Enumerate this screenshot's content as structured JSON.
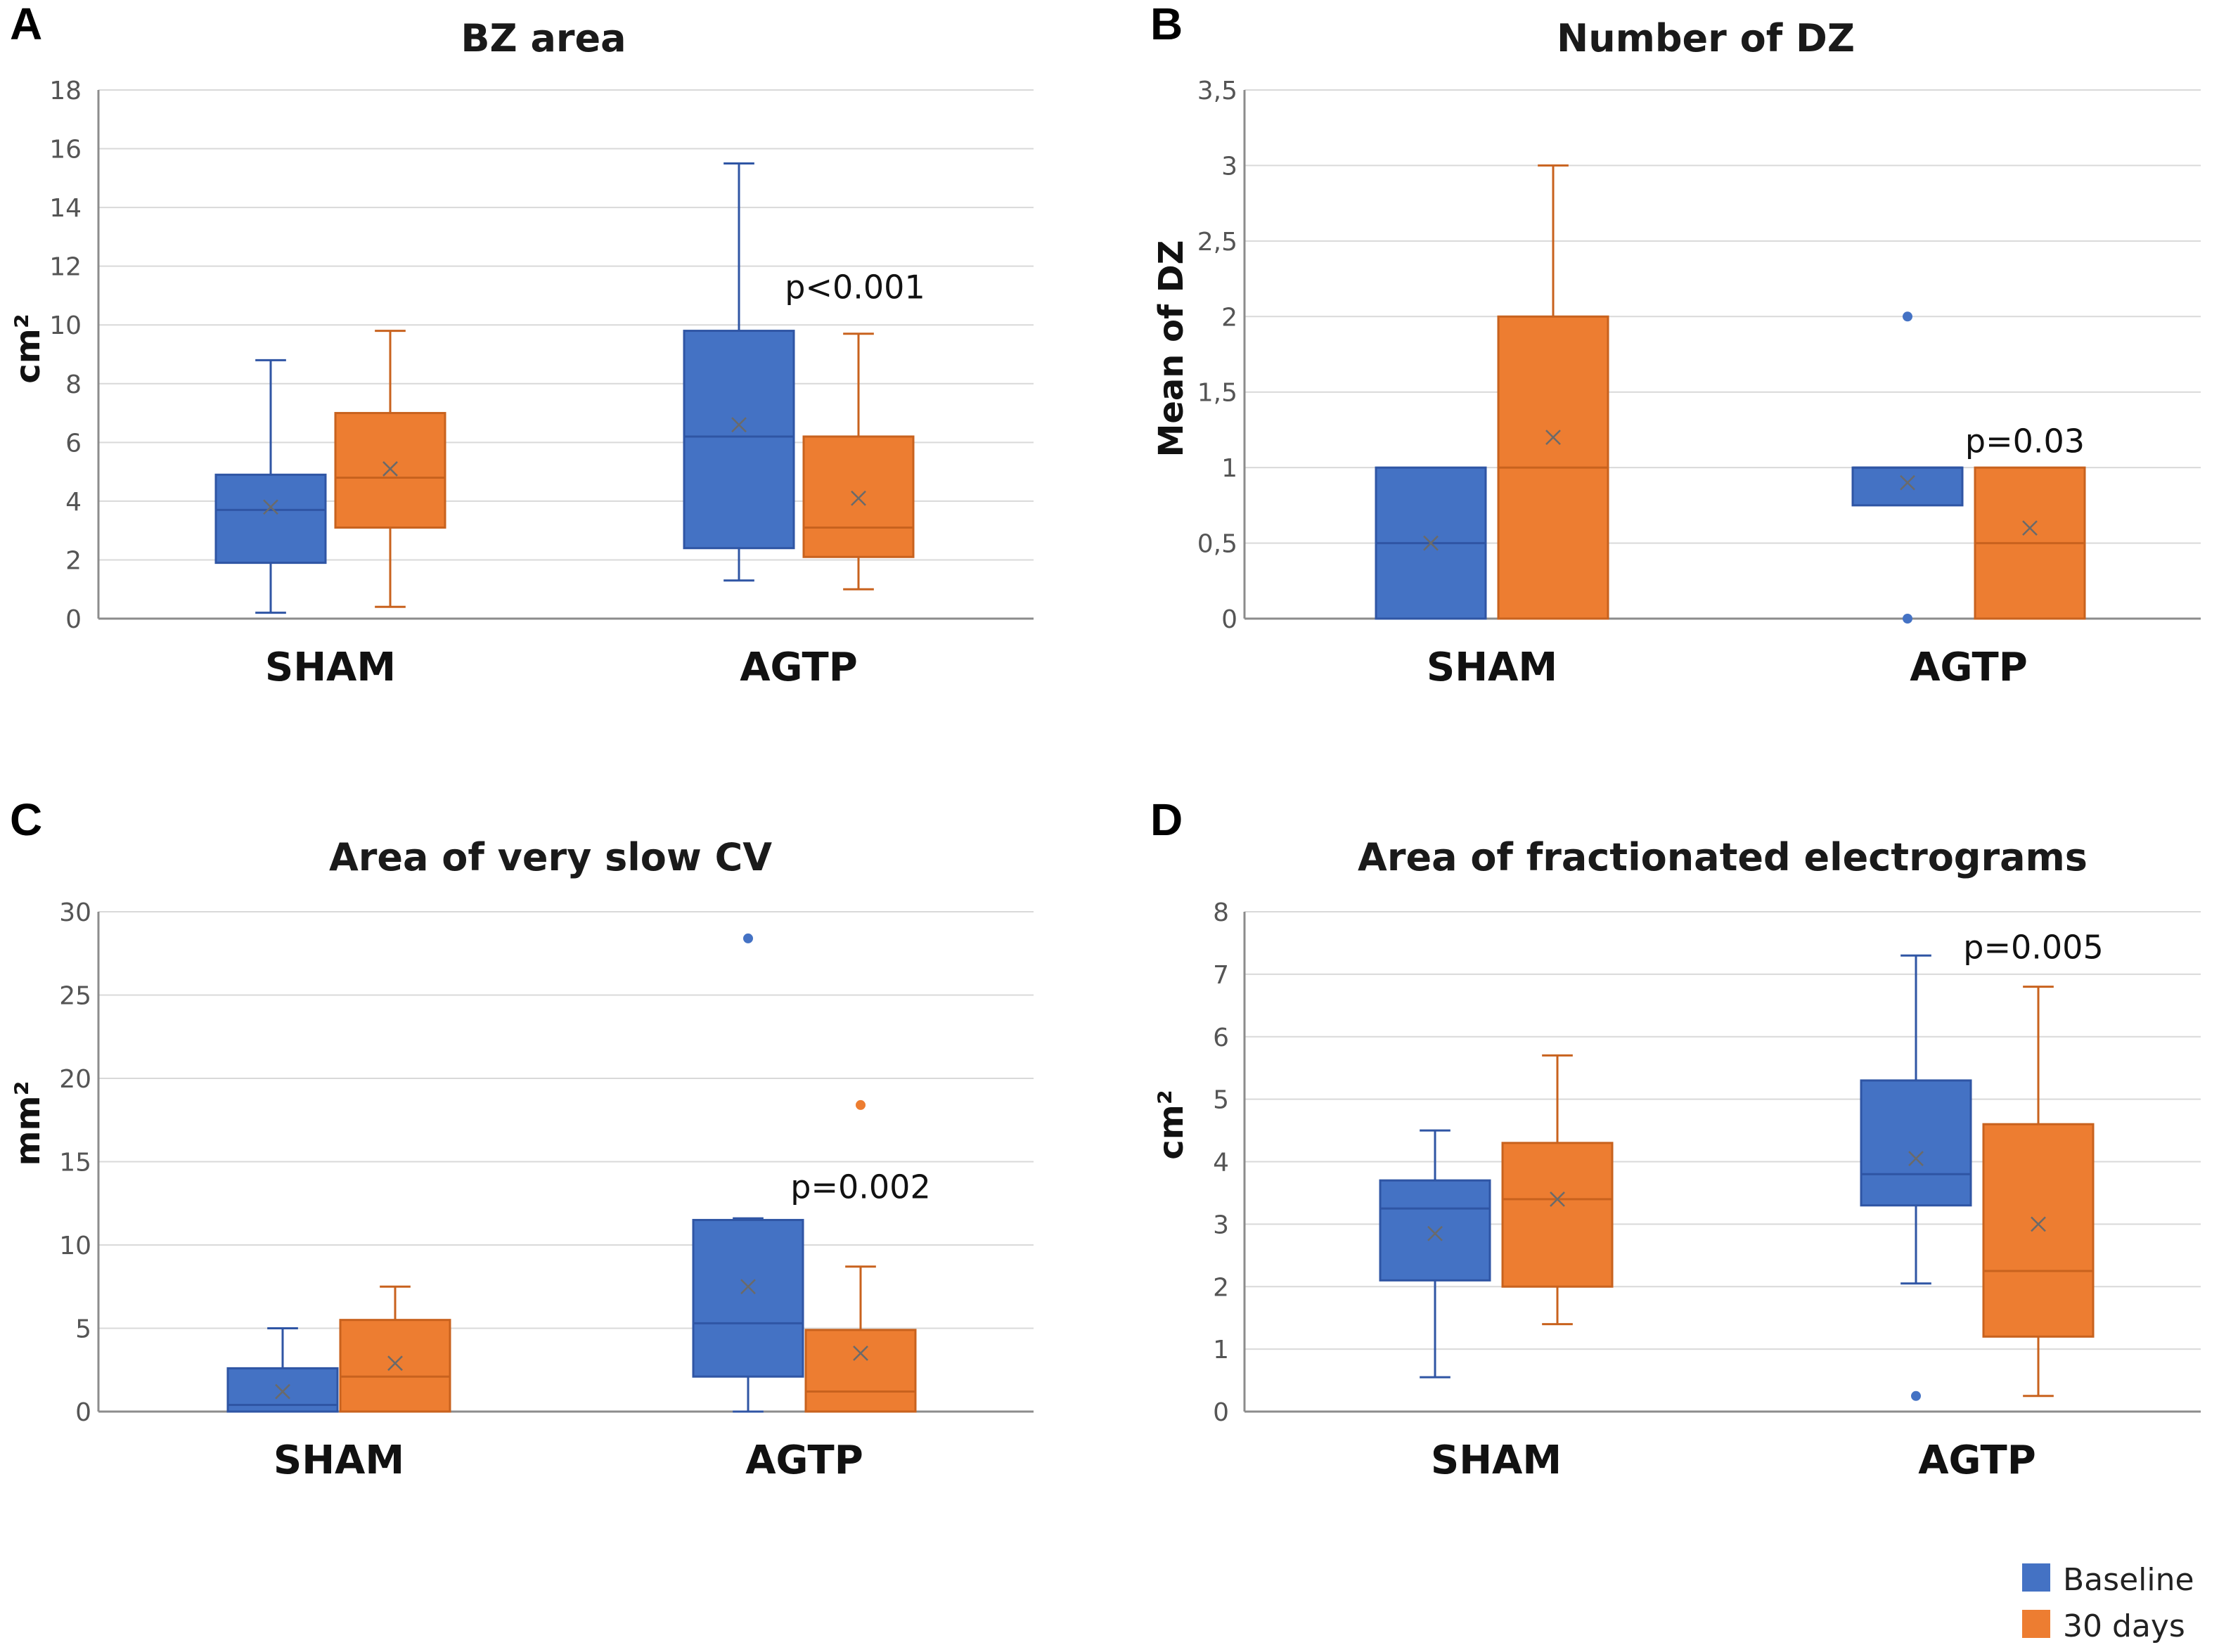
{
  "legend": [
    {
      "name": "Baseline",
      "color": "#4472C4"
    },
    {
      "name": "30 days",
      "color": "#ED7D31"
    }
  ],
  "colors": {
    "baseline_fill": "#4472C4",
    "baseline_line": "#2F55A4",
    "followup_fill": "#ED7D31",
    "followup_line": "#C8621E"
  },
  "chart_data": [
    {
      "panel": "A",
      "type": "box",
      "title": "BZ area",
      "ylabel": "cm²",
      "ylim": [
        0,
        18
      ],
      "yticks": [
        "0",
        "2",
        "4",
        "6",
        "8",
        "10",
        "12",
        "14",
        "16",
        "18"
      ],
      "ytick_values": [
        0,
        2,
        4,
        6,
        8,
        10,
        12,
        14,
        16,
        18
      ],
      "categories": [
        "SHAM",
        "AGTP"
      ],
      "annotation": {
        "text": "p<0.001",
        "category": "AGTP",
        "y": 10.9
      },
      "series": [
        {
          "name": "Baseline",
          "boxes": [
            {
              "min": 0.2,
              "q1": 1.9,
              "median": 3.7,
              "q3": 4.9,
              "max": 8.8,
              "mean": 3.8,
              "outliers": []
            },
            {
              "min": 1.3,
              "q1": 2.4,
              "median": 6.2,
              "q3": 9.8,
              "max": 15.5,
              "mean": 6.6,
              "outliers": []
            }
          ]
        },
        {
          "name": "30 days",
          "boxes": [
            {
              "min": 0.4,
              "q1": 3.1,
              "median": 4.8,
              "q3": 7.0,
              "max": 9.8,
              "mean": 5.1,
              "outliers": []
            },
            {
              "min": 1.0,
              "q1": 2.1,
              "median": 3.1,
              "q3": 6.2,
              "max": 9.7,
              "mean": 4.1,
              "outliers": []
            }
          ]
        }
      ]
    },
    {
      "panel": "B",
      "type": "box",
      "title": "Number of DZ",
      "ylabel": "Mean of DZ",
      "ylim": [
        0,
        3.5
      ],
      "yticks": [
        "0",
        "0,5",
        "1",
        "1,5",
        "2",
        "2,5",
        "3",
        "3,5"
      ],
      "ytick_values": [
        0,
        0.5,
        1,
        1.5,
        2,
        2.5,
        3,
        3.5
      ],
      "categories": [
        "SHAM",
        "AGTP"
      ],
      "annotation": {
        "text": "p=0.03",
        "category": "AGTP",
        "y": 1.1
      },
      "series": [
        {
          "name": "Baseline",
          "boxes": [
            {
              "min": 0,
              "q1": 0,
              "median": 0.5,
              "q3": 1,
              "max": 1,
              "mean": 0.5,
              "outliers": []
            },
            {
              "min": 0.75,
              "q1": 0.75,
              "median": 1,
              "q3": 1,
              "max": 1,
              "mean": 0.9,
              "outliers": [
                2,
                0
              ]
            }
          ]
        },
        {
          "name": "30 days",
          "boxes": [
            {
              "min": 0,
              "q1": 0,
              "median": 1,
              "q3": 2,
              "max": 3,
              "mean": 1.2,
              "outliers": []
            },
            {
              "min": 0,
              "q1": 0,
              "median": 0.5,
              "q3": 1,
              "max": 1,
              "mean": 0.6,
              "outliers": []
            }
          ]
        }
      ]
    },
    {
      "panel": "C",
      "type": "box",
      "title": "Area of very slow CV",
      "ylabel": "mm²",
      "ylim": [
        0,
        30
      ],
      "yticks": [
        "0",
        "5",
        "10",
        "15",
        "20",
        "25",
        "30"
      ],
      "ytick_values": [
        0,
        5,
        10,
        15,
        20,
        25,
        30
      ],
      "categories": [
        "SHAM",
        "AGTP"
      ],
      "annotation": {
        "text": "p=0.002",
        "category": "AGTP",
        "y": 12.8
      },
      "series": [
        {
          "name": "Baseline",
          "boxes": [
            {
              "min": 0,
              "q1": 0,
              "median": 0.4,
              "q3": 2.6,
              "max": 5.0,
              "mean": 1.2,
              "outliers": []
            },
            {
              "min": 0,
              "q1": 2.1,
              "median": 5.3,
              "q3": 11.5,
              "max": 11.6,
              "mean": 7.5,
              "outliers": [
                28.4
              ]
            }
          ]
        },
        {
          "name": "30 days",
          "boxes": [
            {
              "min": 0,
              "q1": 0,
              "median": 2.1,
              "q3": 5.5,
              "max": 7.5,
              "mean": 2.9,
              "outliers": []
            },
            {
              "min": 0,
              "q1": 0,
              "median": 1.2,
              "q3": 4.9,
              "max": 8.7,
              "mean": 3.5,
              "outliers": [
                18.4
              ]
            }
          ]
        }
      ]
    },
    {
      "panel": "D",
      "type": "box",
      "title": "Area of fractionated electrograms",
      "ylabel": "cm²",
      "ylim": [
        0,
        8
      ],
      "yticks": [
        "0",
        "1",
        "2",
        "3",
        "4",
        "5",
        "6",
        "7",
        "8"
      ],
      "ytick_values": [
        0,
        1,
        2,
        3,
        4,
        5,
        6,
        7,
        8
      ],
      "categories": [
        "SHAM",
        "AGTP"
      ],
      "annotation": {
        "text": "p=0.005",
        "category": "AGTP",
        "y": 7.25
      },
      "series": [
        {
          "name": "Baseline",
          "boxes": [
            {
              "min": 0.55,
              "q1": 2.1,
              "median": 3.25,
              "q3": 3.7,
              "max": 4.5,
              "mean": 2.85,
              "outliers": []
            },
            {
              "min": 2.05,
              "q1": 3.3,
              "median": 3.8,
              "q3": 5.3,
              "max": 7.3,
              "mean": 4.05,
              "outliers": [
                0.25
              ]
            }
          ]
        },
        {
          "name": "30 days",
          "boxes": [
            {
              "min": 1.4,
              "q1": 2.0,
              "median": 3.4,
              "q3": 4.3,
              "max": 5.7,
              "mean": 3.4,
              "outliers": []
            },
            {
              "min": 0.25,
              "q1": 1.2,
              "median": 2.25,
              "q3": 4.6,
              "max": 6.8,
              "mean": 3.0,
              "outliers": []
            }
          ]
        }
      ]
    }
  ]
}
